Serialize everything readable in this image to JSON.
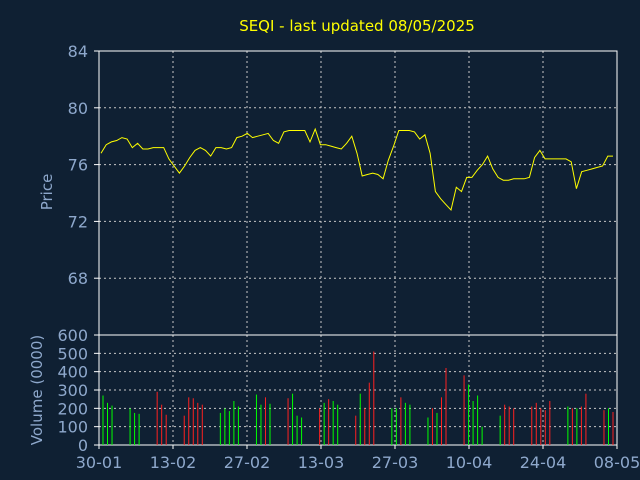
{
  "colors": {
    "background": "#0f2033",
    "axis": "#ffffff",
    "grid": "#c8c8c8",
    "price_line": "#ffff00",
    "title": "#ffff00",
    "label": "#8ea8cc",
    "volume_up": "#00ff00",
    "volume_down": "#ff2020"
  },
  "chart_data": [
    {
      "type": "line",
      "title": "SEQI - last updated 08/05/2025",
      "ylabel": "Price",
      "ylim": [
        64,
        84
      ],
      "yticks": [
        68,
        72,
        76,
        80,
        84
      ],
      "grid": true,
      "x_tick_labels": [
        "30-01",
        "13-02",
        "27-02",
        "13-03",
        "27-03",
        "10-04",
        "24-04",
        "08-05"
      ],
      "series": [
        {
          "values": [
            76.8,
            77.4,
            77.6,
            77.7,
            77.9,
            77.8,
            77.2,
            77.5,
            77.1,
            77.1,
            77.2,
            77.2,
            77.2,
            76.4,
            75.9,
            75.4,
            75.9,
            76.5,
            77.0,
            77.2,
            77.0,
            76.6,
            77.2,
            77.2,
            77.1,
            77.2,
            77.9,
            78.0,
            78.2,
            77.9,
            78.0,
            78.1,
            78.2,
            77.7,
            77.5,
            78.3,
            78.4,
            78.4,
            78.4,
            78.4,
            77.6,
            78.5,
            77.4,
            77.4,
            77.3,
            77.2,
            77.1,
            77.5,
            78.0,
            76.8,
            75.2,
            75.3,
            75.4,
            75.3,
            75.0,
            76.3,
            77.3,
            78.4,
            78.4,
            78.4,
            78.3,
            77.8,
            78.1,
            76.8,
            74.1,
            73.6,
            73.2,
            72.8,
            74.4,
            74.1,
            75.1,
            75.1,
            75.6,
            76.0,
            76.6,
            75.7,
            75.1,
            74.9,
            74.9,
            75.0,
            75.0,
            75.0,
            75.1,
            76.5,
            77.0,
            76.4,
            76.4,
            76.4,
            76.4,
            76.4,
            76.2,
            74.3,
            75.5,
            75.6,
            75.7,
            75.8,
            75.9,
            76.6,
            76.6
          ]
        }
      ]
    },
    {
      "type": "bar",
      "ylabel": "Volume (0000)",
      "ylim": [
        0,
        600
      ],
      "yticks": [
        0,
        100,
        200,
        300,
        400,
        500,
        600
      ],
      "grid": true,
      "x_tick_labels": [
        "30-01",
        "13-02",
        "27-02",
        "13-03",
        "27-03",
        "10-04",
        "24-04",
        "08-05"
      ],
      "series": [
        {
          "values": [
            270,
            230,
            215,
            0,
            0,
            0,
            200,
            175,
            170,
            0,
            0,
            0,
            290,
            220,
            165,
            0,
            0,
            0,
            160,
            260,
            255,
            230,
            220,
            0,
            0,
            0,
            175,
            200,
            185,
            240,
            210,
            0,
            0,
            0,
            275,
            220,
            260,
            225,
            0,
            0,
            0,
            255,
            280,
            160,
            150,
            0,
            0,
            0,
            200,
            230,
            250,
            240,
            220,
            0,
            0,
            0,
            160,
            280,
            200,
            340,
            510,
            0,
            0,
            0,
            200,
            200,
            260,
            230,
            220,
            0,
            0,
            0,
            150,
            200,
            175,
            260,
            420,
            0,
            0,
            0,
            380,
            330,
            240,
            270,
            100,
            0,
            0,
            0,
            160,
            220,
            210,
            200,
            0,
            0,
            0,
            210,
            230,
            200,
            190,
            240,
            0,
            0,
            0,
            210,
            200,
            200,
            210,
            280,
            0,
            0,
            0,
            190,
            200,
            180
          ],
          "up": [
            true,
            true,
            true,
            false,
            false,
            false,
            true,
            true,
            true,
            false,
            false,
            false,
            false,
            false,
            false,
            false,
            false,
            false,
            false,
            false,
            false,
            false,
            false,
            false,
            false,
            false,
            true,
            true,
            true,
            true,
            true,
            false,
            false,
            false,
            true,
            true,
            false,
            true,
            false,
            false,
            false,
            false,
            true,
            true,
            true,
            false,
            false,
            false,
            false,
            true,
            false,
            true,
            true,
            false,
            false,
            false,
            false,
            true,
            false,
            false,
            false,
            false,
            false,
            false,
            true,
            true,
            false,
            true,
            true,
            false,
            false,
            false,
            true,
            false,
            true,
            false,
            false,
            false,
            false,
            false,
            false,
            true,
            true,
            true,
            true,
            false,
            false,
            false,
            true,
            false,
            false,
            false,
            false,
            false,
            false,
            false,
            false,
            false,
            false,
            false,
            false,
            false,
            false,
            true,
            false,
            true,
            false,
            false,
            false,
            false,
            false,
            false,
            true,
            false
          ],
          "note": ""
        }
      ]
    }
  ]
}
